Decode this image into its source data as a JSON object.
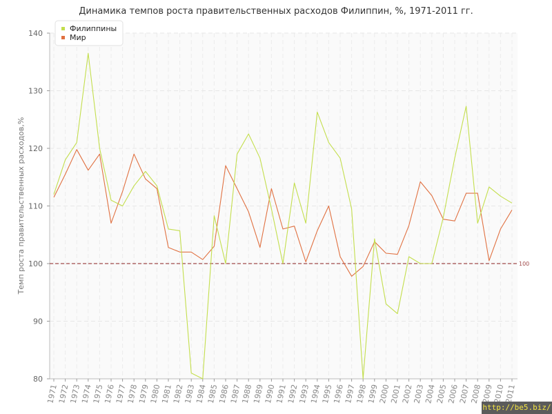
{
  "chart_data": {
    "type": "line",
    "title": "Динамика темпов роста правительственных расходов Филиппин, %, 1971-2011 гг.",
    "xlabel": "",
    "ylabel": "Темп роста правительственных расходов,%",
    "ylim": [
      80,
      140
    ],
    "yticks": [
      80,
      90,
      100,
      110,
      120,
      130,
      140
    ],
    "grid": true,
    "legend_position": "top-left",
    "x": [
      "1971",
      "1972",
      "1973",
      "1974",
      "1975",
      "1976",
      "1977",
      "1978",
      "1979",
      "1980",
      "1981",
      "1982",
      "1983",
      "1984",
      "1985",
      "1986",
      "1987",
      "1988",
      "1989",
      "1990",
      "1991",
      "1992",
      "1993",
      "1994",
      "1995",
      "1996",
      "1997",
      "1998",
      "1999",
      "2000",
      "2001",
      "2002",
      "2003",
      "2004",
      "2005",
      "2006",
      "2007",
      "2008",
      "2009",
      "2010",
      "2011"
    ],
    "series": [
      {
        "name": "Филиппины",
        "color": "#c3de4c",
        "values": [
          112,
          118,
          121,
          136.5,
          120,
          111,
          110,
          113.5,
          116,
          113.5,
          106,
          105.7,
          81,
          80,
          108.3,
          100,
          119,
          122.5,
          118.3,
          109.5,
          100,
          114,
          107,
          126.3,
          121,
          118.3,
          109.5,
          80,
          104.3,
          93,
          91.3,
          101.2,
          100,
          100,
          108,
          118.3,
          127.3,
          107,
          113.3,
          111.7,
          110.5
        ]
      },
      {
        "name": "Мир",
        "color": "#e07040",
        "values": [
          111.5,
          115.5,
          119.8,
          116.2,
          119,
          107,
          112.5,
          119,
          114.7,
          113,
          102.8,
          102,
          102,
          100.7,
          103,
          117,
          113,
          109,
          102.8,
          113,
          106,
          106.5,
          100.3,
          105.7,
          110,
          101.2,
          97.8,
          99.5,
          103.8,
          101.8,
          101.6,
          106.6,
          114.2,
          111.8,
          107.7,
          107.4,
          112.2,
          112.2,
          100.5,
          106,
          109.3
        ]
      }
    ],
    "reference_line": {
      "value": 100,
      "label": "100",
      "color": "#a04a4a"
    }
  },
  "watermark": "http://be5.biz/"
}
